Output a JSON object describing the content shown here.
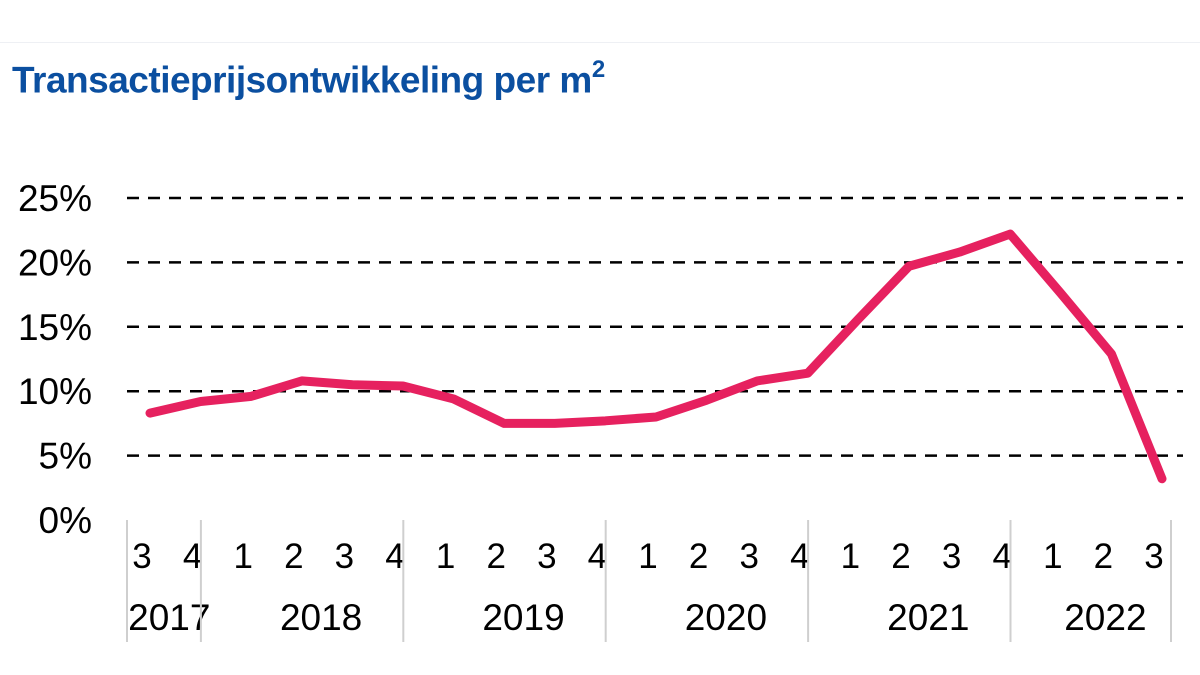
{
  "title": "Transactieprijsontwikkeling per m",
  "title_sup": "2",
  "colors": {
    "title": "#0b4fa0",
    "line": "#e6215f",
    "grid": "#000000",
    "axis": "#cfcfcf"
  },
  "chart_data": {
    "type": "line",
    "title": "Transactieprijsontwikkeling per m²",
    "xlabel": "",
    "ylabel": "",
    "ylim": [
      0,
      25
    ],
    "yticks": [
      "0%",
      "5%",
      "10%",
      "15%",
      "20%",
      "25%"
    ],
    "grid": true,
    "grid_style": "dashed",
    "legend": "none",
    "years": [
      {
        "label": "2017",
        "quarters": [
          "3",
          "4"
        ]
      },
      {
        "label": "2018",
        "quarters": [
          "1",
          "2",
          "3",
          "4"
        ]
      },
      {
        "label": "2019",
        "quarters": [
          "1",
          "2",
          "3",
          "4"
        ]
      },
      {
        "label": "2020",
        "quarters": [
          "1",
          "2",
          "3",
          "4"
        ]
      },
      {
        "label": "2021",
        "quarters": [
          "1",
          "2",
          "3",
          "4"
        ]
      },
      {
        "label": "2022",
        "quarters": [
          "1",
          "2",
          "3"
        ]
      }
    ],
    "series": [
      {
        "values": [
          8.3,
          9.2,
          9.6,
          10.8,
          10.5,
          10.4,
          9.4,
          7.5,
          7.5,
          7.7,
          8.0,
          9.3,
          10.8,
          11.4,
          15.6,
          19.7,
          20.8,
          22.2,
          17.6,
          12.9,
          3.2
        ]
      }
    ]
  }
}
